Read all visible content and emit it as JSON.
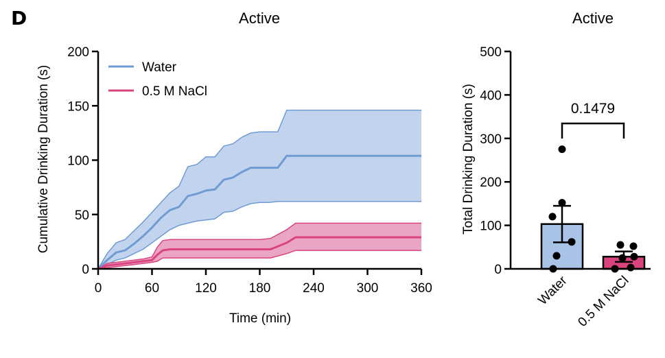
{
  "panel_label": "D",
  "chart_data": [
    {
      "type": "line",
      "title": "Active",
      "xlabel": "Time (min)",
      "ylabel": "Cumulative Drinking Duration (s)",
      "xlim": [
        0,
        360
      ],
      "ylim": [
        0,
        200
      ],
      "xticks": [
        "0",
        "60",
        "120",
        "180",
        "240",
        "300",
        "360"
      ],
      "yticks": [
        "0",
        "50",
        "100",
        "150",
        "200"
      ],
      "legend_position": "top-left",
      "series": [
        {
          "name": "Water",
          "color": "#6f9bd3",
          "band_color": "#b7cbea",
          "x": [
            0,
            10,
            20,
            30,
            40,
            50,
            60,
            70,
            80,
            90,
            100,
            110,
            120,
            130,
            140,
            150,
            160,
            170,
            180,
            190,
            200,
            210,
            220,
            240,
            300,
            360
          ],
          "y": [
            0,
            8,
            15,
            17,
            23,
            30,
            38,
            47,
            54,
            57,
            67,
            69,
            72,
            73,
            82,
            84,
            89,
            93,
            93,
            93,
            93,
            104,
            104,
            104,
            104,
            104
          ],
          "upper": [
            0,
            14,
            24,
            27,
            35,
            43,
            52,
            61,
            70,
            76,
            94,
            96,
            103,
            103,
            113,
            115,
            121,
            125,
            126,
            126,
            126,
            146,
            146,
            146,
            146,
            146
          ],
          "lower": [
            0,
            4,
            8,
            10,
            14,
            18,
            24,
            30,
            36,
            40,
            42,
            44,
            45,
            46,
            52,
            53,
            57,
            60,
            61,
            61,
            62,
            62,
            62,
            62,
            62,
            62
          ]
        },
        {
          "name": "0.5 M NaCl",
          "color": "#d9447e",
          "band_color": "#e58fb6",
          "x": [
            0,
            10,
            20,
            30,
            40,
            50,
            60,
            66,
            72,
            80,
            100,
            140,
            180,
            192,
            210,
            220,
            240,
            300,
            360
          ],
          "y": [
            0,
            3,
            4,
            5,
            6,
            7,
            8,
            13,
            17,
            18,
            18,
            18,
            18,
            18,
            24,
            29,
            29,
            29,
            29
          ],
          "upper": [
            0,
            5,
            6,
            7,
            8,
            9,
            11,
            20,
            26,
            27,
            27,
            27,
            27,
            28,
            36,
            42,
            42,
            42,
            42
          ],
          "lower": [
            0,
            1,
            2,
            3,
            4,
            5,
            6,
            7,
            10,
            10,
            10,
            10,
            10,
            10,
            14,
            17,
            17,
            17,
            17
          ]
        }
      ]
    },
    {
      "type": "bar",
      "title": "Active",
      "ylabel": "Total Drinking Duration (s)",
      "ylim": [
        0,
        500
      ],
      "yticks": [
        "0",
        "100",
        "200",
        "300",
        "400",
        "500"
      ],
      "categories": [
        "Water",
        "0.5 M NaCl"
      ],
      "values": [
        103,
        28
      ],
      "sem": [
        42,
        12
      ],
      "colors": [
        "#a8c3e6",
        "#d9447e"
      ],
      "points": [
        [
          275,
          152,
          120,
          62,
          30,
          0
        ],
        [
          55,
          52,
          28,
          25,
          3,
          0
        ]
      ],
      "annotation": "0.1479"
    }
  ]
}
